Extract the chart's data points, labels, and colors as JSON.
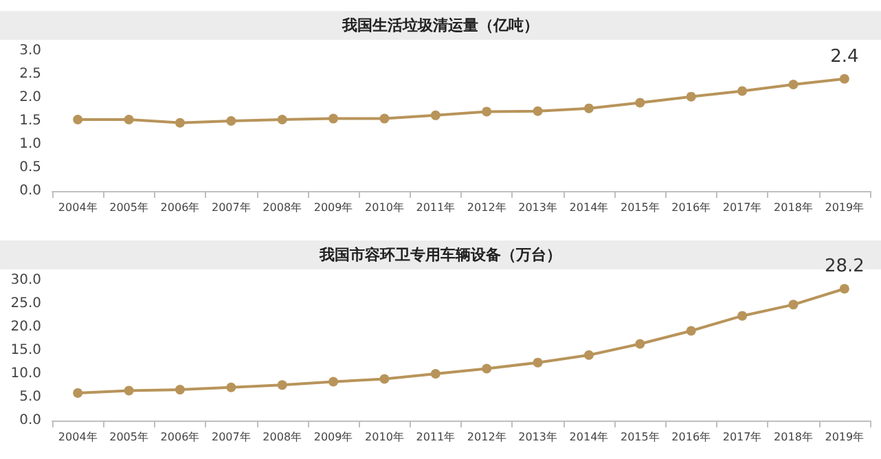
{
  "chart_data": [
    {
      "type": "line",
      "title": "我国生活垃圾清运量（亿吨）",
      "categories": [
        "2004年",
        "2005年",
        "2006年",
        "2007年",
        "2008年",
        "2009年",
        "2010年",
        "2011年",
        "2012年",
        "2013年",
        "2014年",
        "2015年",
        "2016年",
        "2017年",
        "2018年",
        "2019年"
      ],
      "series": [
        {
          "color": "#b8945a",
          "values": [
            1.53,
            1.53,
            1.46,
            1.5,
            1.53,
            1.55,
            1.55,
            1.62,
            1.7,
            1.71,
            1.77,
            1.89,
            2.02,
            2.14,
            2.28,
            2.4
          ],
          "value_labels": [
            null,
            null,
            null,
            null,
            null,
            null,
            null,
            null,
            null,
            null,
            null,
            null,
            null,
            null,
            null,
            "2.4"
          ]
        }
      ],
      "ylim": [
        0,
        3
      ],
      "yticks": [
        {
          "value": 0,
          "label": "0.0"
        },
        {
          "value": 0.5,
          "label": "0.5"
        },
        {
          "value": 1,
          "label": "1.0"
        },
        {
          "value": 1.5,
          "label": "1.5"
        },
        {
          "value": 2,
          "label": "2.0"
        },
        {
          "value": 2.5,
          "label": "2.5"
        },
        {
          "value": 3,
          "label": "3.0"
        }
      ],
      "grid": false,
      "marker": "circle",
      "line_style": "solid"
    },
    {
      "type": "line",
      "title": "我国市容环卫专用车辆设备（万台）",
      "categories": [
        "2004年",
        "2005年",
        "2006年",
        "2007年",
        "2008年",
        "2009年",
        "2010年",
        "2011年",
        "2012年",
        "2013年",
        "2014年",
        "2015年",
        "2016年",
        "2017年",
        "2018年",
        "2019年"
      ],
      "series": [
        {
          "color": "#b8945a",
          "values": [
            5.9,
            6.4,
            6.6,
            7.1,
            7.6,
            8.3,
            8.9,
            10.0,
            11.1,
            12.4,
            14.0,
            16.4,
            19.2,
            22.4,
            24.8,
            28.2
          ],
          "value_labels": [
            null,
            null,
            null,
            null,
            null,
            null,
            null,
            null,
            null,
            null,
            null,
            null,
            null,
            null,
            null,
            "28.2"
          ]
        }
      ],
      "ylim": [
        0,
        30
      ],
      "yticks": [
        {
          "value": 0,
          "label": "0.0"
        },
        {
          "value": 5,
          "label": "5.0"
        },
        {
          "value": 10,
          "label": "10.0"
        },
        {
          "value": 15,
          "label": "15.0"
        },
        {
          "value": 20,
          "label": "20.0"
        },
        {
          "value": 25,
          "label": "25.0"
        },
        {
          "value": 30,
          "label": "30.0"
        }
      ],
      "grid": false,
      "marker": "circle",
      "line_style": "solid"
    }
  ]
}
